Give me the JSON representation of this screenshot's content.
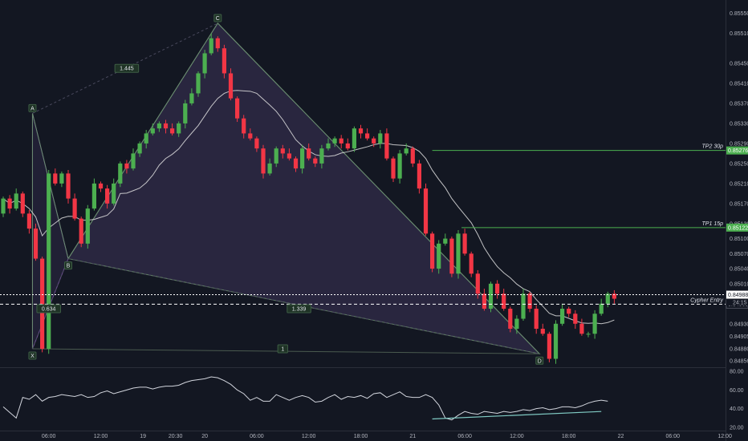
{
  "chart_data": {
    "type": "candlestick",
    "price_axis": {
      "ylim": [
        0.84856,
        0.8557
      ],
      "ticks": [
        {
          "value": 0.8555,
          "label": "0.85550"
        },
        {
          "value": 0.8551,
          "label": "0.85510"
        },
        {
          "value": 0.8545,
          "label": "0.85450"
        },
        {
          "value": 0.8541,
          "label": "0.85410"
        },
        {
          "value": 0.8537,
          "label": "0.85370"
        },
        {
          "value": 0.8533,
          "label": "0.85330"
        },
        {
          "value": 0.8529,
          "label": "0.85290"
        },
        {
          "value": 0.8525,
          "label": "0.85250"
        },
        {
          "value": 0.8521,
          "label": "0.85210"
        },
        {
          "value": 0.8517,
          "label": "0.85170"
        },
        {
          "value": 0.8513,
          "label": "0.85130"
        },
        {
          "value": 0.851,
          "label": "0.85100"
        },
        {
          "value": 0.8507,
          "label": "0.85070"
        },
        {
          "value": 0.8504,
          "label": "0.85040"
        },
        {
          "value": 0.8501,
          "label": "0.85010"
        },
        {
          "value": 0.84969,
          "label": "0.84969"
        },
        {
          "value": 0.8493,
          "label": "0.84930"
        },
        {
          "value": 0.84905,
          "label": "0.84905"
        },
        {
          "value": 0.8488,
          "label": "0.84880"
        },
        {
          "value": 0.84856,
          "label": "0.84856"
        }
      ]
    },
    "time_axis": {
      "labels": [
        {
          "slot": 7,
          "label": "06:00"
        },
        {
          "slot": 15,
          "label": "12:00"
        },
        {
          "slot": 21.5,
          "label": "19"
        },
        {
          "slot": 26.5,
          "label": "20:30"
        },
        {
          "slot": 31,
          "label": "20"
        },
        {
          "slot": 39,
          "label": "06:00"
        },
        {
          "slot": 47,
          "label": "12:00"
        },
        {
          "slot": 55,
          "label": "18:00"
        },
        {
          "slot": 63,
          "label": "21"
        },
        {
          "slot": 71,
          "label": "06:00"
        },
        {
          "slot": 79,
          "label": "12:00"
        },
        {
          "slot": 87,
          "label": "18:00"
        },
        {
          "slot": 95,
          "label": "22"
        },
        {
          "slot": 103,
          "label": "06:00"
        },
        {
          "slot": 111,
          "label": "12:00"
        }
      ]
    },
    "candles_close": [
      0.8518,
      0.8516,
      0.8519,
      0.8515,
      0.8512,
      0.8506,
      0.8488,
      0.8523,
      0.8521,
      0.8523,
      0.8518,
      0.8514,
      0.8509,
      0.8516,
      0.8521,
      0.852,
      0.8517,
      0.8521,
      0.8525,
      0.8524,
      0.8527,
      0.8529,
      0.8531,
      0.8532,
      0.8533,
      0.8532,
      0.8531,
      0.8533,
      0.8537,
      0.8539,
      0.8543,
      0.8547,
      0.855,
      0.8548,
      0.8543,
      0.8538,
      0.8534,
      0.8531,
      0.853,
      0.8528,
      0.8523,
      0.8525,
      0.8528,
      0.8527,
      0.8526,
      0.8524,
      0.8528,
      0.8526,
      0.8525,
      0.8528,
      0.8529,
      0.853,
      0.8529,
      0.8528,
      0.8532,
      0.8531,
      0.853,
      0.8529,
      0.8531,
      0.8526,
      0.8522,
      0.8527,
      0.8528,
      0.8525,
      0.852,
      0.8511,
      0.8504,
      0.8509,
      0.851,
      0.8503,
      0.8511,
      0.8507,
      0.8503,
      0.8499,
      0.8496,
      0.8501,
      0.8499,
      0.8496,
      0.8492,
      0.8494,
      0.8499,
      0.8496,
      0.8492,
      0.8491,
      0.8486,
      0.8493,
      0.8496,
      0.8495,
      0.8493,
      0.8491,
      0.8491,
      0.8495,
      0.8497,
      0.8499,
      0.8498
    ],
    "patterns": {
      "points": [
        {
          "id": "X",
          "label": "X",
          "slot": 4.5,
          "price": 0.8488
        },
        {
          "id": "A",
          "label": "A",
          "slot": 4.5,
          "price": 0.8535
        },
        {
          "id": "B",
          "label": "B",
          "slot": 10,
          "price": 0.8506
        },
        {
          "id": "C",
          "label": "C",
          "slot": 33,
          "price": 0.8553
        },
        {
          "id": "D",
          "label": "D",
          "slot": 82.5,
          "price": 0.8487
        }
      ],
      "ratios": [
        {
          "label": "1.445",
          "slot": 19,
          "price": 0.8544
        },
        {
          "label": "0.634",
          "slot": 7,
          "price": 0.8496
        },
        {
          "label": "1.339",
          "slot": 45.5,
          "price": 0.8496
        },
        {
          "label": "1",
          "slot": 43,
          "price": 0.8488
        }
      ]
    },
    "levels": [
      {
        "name": "TP2 30p",
        "value": 0.85276,
        "label": "0.85276",
        "color": "#4caf50"
      },
      {
        "name": "TP1 15p",
        "value": 0.85122,
        "label": "0.85122",
        "color": "#4caf50"
      },
      {
        "name": "Cypher Entry",
        "value": 0.84969,
        "label": "0.84969",
        "color": "#ffffff"
      },
      {
        "name": "",
        "value": 0.84988,
        "label": "0.84988",
        "color": "#ffffff"
      }
    ],
    "countdown": "24:15",
    "rsi": {
      "ylim": [
        20,
        80
      ],
      "ticks": [
        {
          "value": 80,
          "label": "80.00"
        },
        {
          "value": 60,
          "label": "60.00"
        },
        {
          "value": 40,
          "label": "40.00"
        },
        {
          "value": 20,
          "label": "20.00"
        }
      ],
      "values": [
        42,
        36,
        30,
        52,
        50,
        55,
        48,
        52,
        53,
        55,
        54,
        53,
        55,
        52,
        53,
        57,
        59,
        56,
        58,
        60,
        62,
        63,
        63,
        61,
        63,
        64,
        64,
        65,
        68,
        70,
        71,
        72,
        74,
        73,
        70,
        66,
        60,
        56,
        49,
        52,
        48,
        48,
        55,
        52,
        49,
        52,
        54,
        52,
        47,
        48,
        52,
        55,
        50,
        53,
        52,
        54,
        51,
        56,
        57,
        52,
        55,
        58,
        53,
        52,
        52,
        55,
        52,
        44,
        30,
        28,
        33,
        37,
        35,
        34,
        37,
        36,
        35,
        37,
        36,
        37,
        39,
        38,
        40,
        41,
        39,
        40,
        42,
        42,
        41,
        43,
        46,
        48,
        49,
        48
      ],
      "divergence": {
        "from_slot": 66,
        "from": 29,
        "to_slot": 92,
        "to": 37,
        "color": "#80cbc4"
      }
    },
    "colors": {
      "background": "#131722",
      "up": "#4caf50",
      "down": "#f23645",
      "pattern_fill": "#7b5ea7",
      "ma": "#e0e0e0"
    }
  }
}
